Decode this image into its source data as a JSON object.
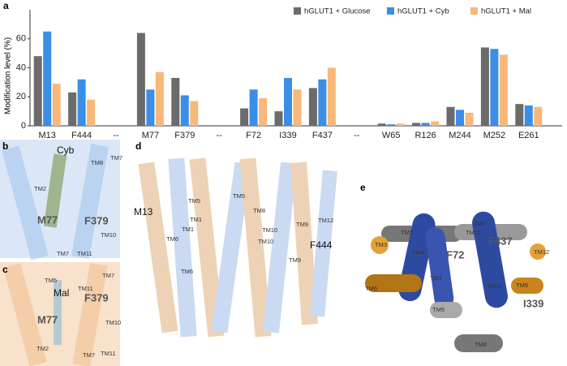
{
  "chart_data": {
    "type": "bar",
    "panel_label": "a",
    "ylabel": "Modification level (%)",
    "categories": [
      "M13",
      "F444",
      "--",
      "M77",
      "F379",
      "--",
      "F72",
      "I339",
      "F437",
      "--",
      "W65",
      "R126",
      "M244",
      "M252",
      "E261"
    ],
    "series": [
      {
        "name": "hGLUT1 + Glucose",
        "color": "#6b6b6b",
        "values": [
          48,
          23,
          null,
          64,
          33,
          null,
          12,
          10,
          26,
          null,
          1.5,
          2,
          13,
          54,
          15
        ]
      },
      {
        "name": "hGLUT1 + Cyb",
        "color": "#3a8ee6",
        "values": [
          65,
          32,
          null,
          25,
          21,
          null,
          25,
          33,
          32,
          null,
          1,
          2,
          11,
          53,
          14
        ]
      },
      {
        "name": "hGLUT1 + Mal",
        "color": "#f7b87a",
        "values": [
          29,
          18,
          null,
          37,
          17,
          null,
          19,
          25,
          40,
          null,
          1.5,
          3,
          9,
          49,
          13
        ]
      }
    ],
    "ylim": [
      0,
      80
    ],
    "yticks": [
      0,
      20,
      40,
      60
    ],
    "legend": "top-right"
  },
  "panels": [
    {
      "label": "b",
      "texts": [
        "Cyb",
        "TM2",
        "TM8",
        "TM7",
        "M77",
        "F379",
        "TM10",
        "TM7",
        "TM11"
      ]
    },
    {
      "label": "c",
      "texts": [
        "TM5",
        "Mal",
        "TM11",
        "F379",
        "TM7",
        "M77",
        "TM10",
        "TM2",
        "TM7",
        "TM11"
      ]
    },
    {
      "label": "d",
      "texts": [
        "M13",
        "TM5",
        "TM5",
        "TM8",
        "TM1",
        "TM1",
        "TM6",
        "TM10",
        "TM10",
        "TM9",
        "TM12",
        "F444",
        "TM9",
        "TM6"
      ]
    },
    {
      "label": "e",
      "texts": [
        "TM2",
        "TM11",
        "TM7",
        "TM3",
        "F437",
        "TM12",
        "TM4",
        "F72",
        "TM6",
        "TM1",
        "TM10",
        "TM9",
        "TM5",
        "I339",
        "TM8"
      ]
    }
  ]
}
